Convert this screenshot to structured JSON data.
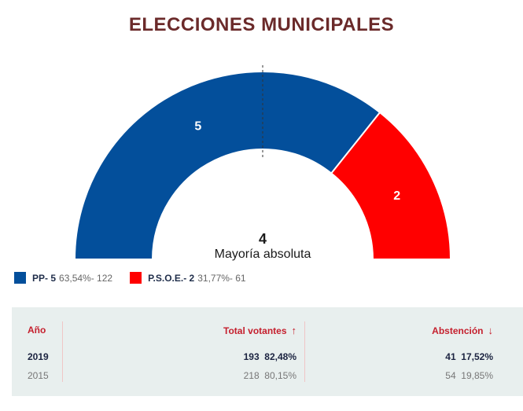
{
  "title": "ELECCIONES MUNICIPALES",
  "chart_data": {
    "type": "hemicycle",
    "total_seats": 7,
    "majority_seats": 4,
    "majority_label": "Mayoría absoluta",
    "series": [
      {
        "name": "PP",
        "seats": 5,
        "percent": "63,54%",
        "votes": 122,
        "color": "#034f9b"
      },
      {
        "name": "P.S.O.E.",
        "seats": 2,
        "percent": "31,77%",
        "votes": 61,
        "color": "#ff0000"
      }
    ]
  },
  "legend": [
    {
      "label": "PP- 5",
      "detail": "63,54%- 122",
      "color": "#034f9b"
    },
    {
      "label": "P.S.O.E.- 2",
      "detail": "31,77%- 61",
      "color": "#ff0000"
    }
  ],
  "table": {
    "headers": {
      "year": "Año",
      "total": "Total votantes",
      "abst": "Abstención"
    },
    "rows": [
      {
        "year": "2019",
        "total_count": "193",
        "total_pct": "82,48%",
        "abst_count": "41",
        "abst_pct": "17,52%"
      },
      {
        "year": "2015",
        "total_count": "218",
        "total_pct": "80,15%",
        "abst_count": "54",
        "abst_pct": "19,85%"
      }
    ]
  }
}
